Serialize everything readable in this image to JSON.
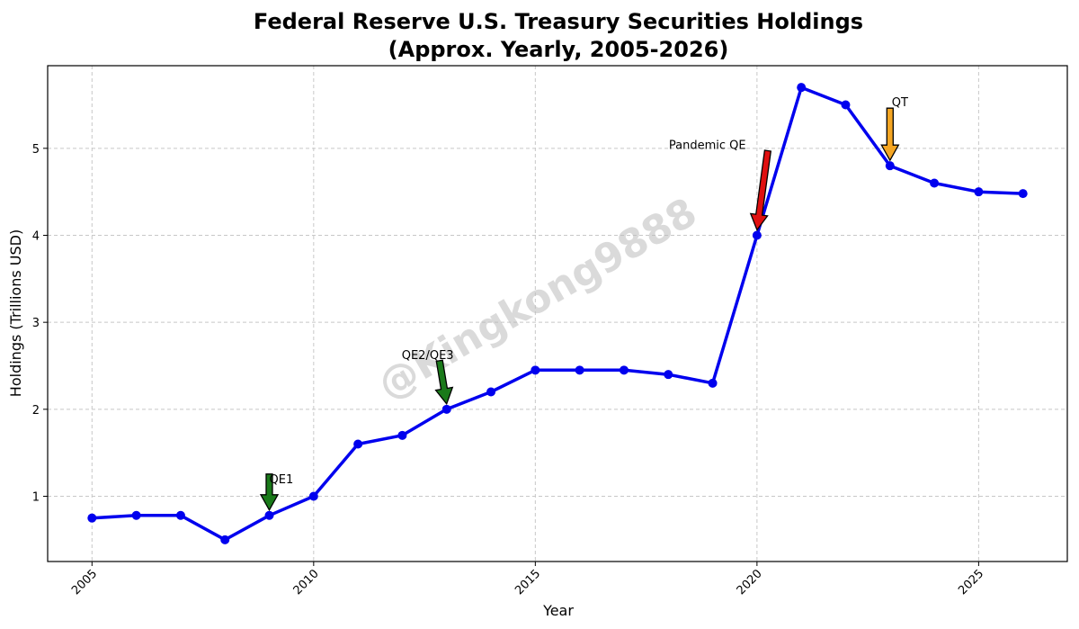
{
  "chart_data": {
    "type": "line",
    "title_line1": "Federal Reserve U.S. Treasury Securities Holdings",
    "title_line2": "(Approx. Yearly, 2005-2026)",
    "xlabel": "Year",
    "ylabel": "Holdings (Trillions USD)",
    "xlim": [
      2004.0,
      2027.0
    ],
    "ylim": [
      0.25,
      5.95
    ],
    "xticks": [
      2005,
      2010,
      2015,
      2020,
      2025
    ],
    "xtick_labels": [
      "2005",
      "2010",
      "2015",
      "2020",
      "2025"
    ],
    "yticks": [
      1,
      2,
      3,
      4,
      5
    ],
    "ytick_labels": [
      "1",
      "2",
      "3",
      "4",
      "5"
    ],
    "grid": true,
    "line_color": "#0000ee",
    "x": [
      2005,
      2006,
      2007,
      2008,
      2009,
      2010,
      2011,
      2012,
      2013,
      2014,
      2015,
      2016,
      2017,
      2018,
      2019,
      2020,
      2021,
      2022,
      2023,
      2024,
      2025,
      2026
    ],
    "y": [
      0.75,
      0.78,
      0.78,
      0.5,
      0.78,
      1.0,
      1.6,
      1.7,
      2.0,
      2.2,
      2.45,
      2.45,
      2.45,
      2.4,
      2.3,
      4.0,
      5.7,
      5.5,
      4.8,
      4.6,
      4.5,
      4.48
    ],
    "annotations": [
      {
        "text": "QE1",
        "x": 2009,
        "y": 0.78,
        "color": "#1a7a1a"
      },
      {
        "text": "QE2/QE3",
        "x": 2013,
        "y": 2.0,
        "color": "#1a7a1a"
      },
      {
        "text": "Pandemic QE",
        "x": 2020,
        "y": 4.0,
        "color": "#e01010"
      },
      {
        "text": "QT",
        "x": 2023,
        "y": 4.8,
        "color": "#f5a623"
      }
    ],
    "watermark": "@Kingkong9888"
  }
}
